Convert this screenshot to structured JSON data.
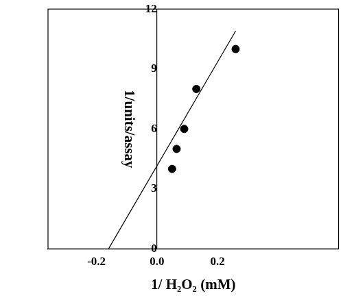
{
  "chart_data": {
    "type": "scatter",
    "x_label": "1/ H₂O₂ (mM)",
    "y_label": "1/units/assay",
    "xlim": [
      -0.36,
      0.6
    ],
    "xticks": [
      -0.2,
      {
        "value": 0,
        "label": "0.0"
      },
      0.2
    ],
    "ylim": [
      0,
      12
    ],
    "yticks": [
      0,
      3,
      6,
      9,
      12
    ],
    "grid": false,
    "series": [
      {
        "type": "scatter",
        "marker": "circle",
        "color": "#000000",
        "x": [
          0.05,
          0.065,
          0.09,
          0.13,
          0.26
        ],
        "values": [
          4,
          5,
          6,
          8,
          10
        ]
      },
      {
        "type": "line",
        "line_style": "solid",
        "color": "#000000",
        "x": [
          -0.16,
          0.26
        ],
        "values": [
          0,
          10.9
        ]
      }
    ]
  }
}
